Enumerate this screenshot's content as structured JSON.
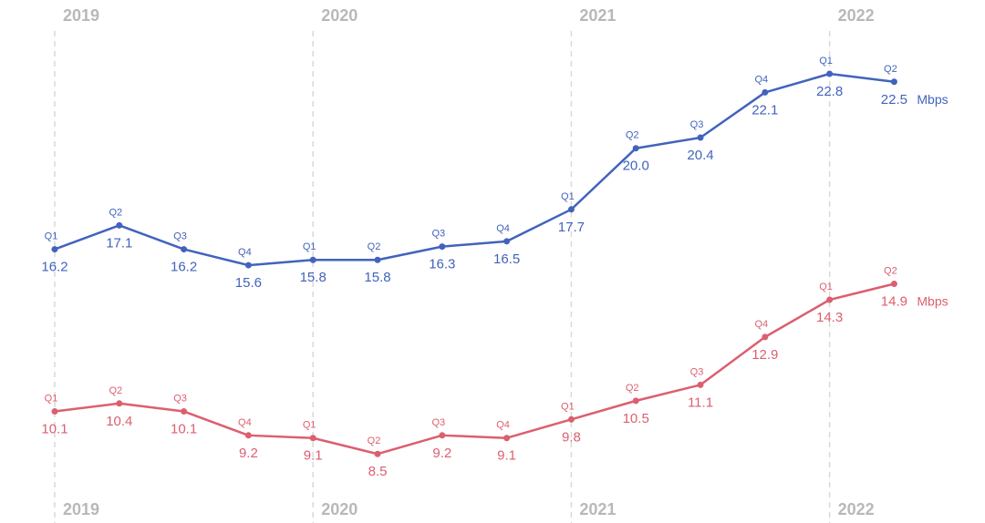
{
  "chart_data": {
    "type": "line",
    "years": [
      "2019",
      "2020",
      "2021",
      "2022"
    ],
    "x": [
      "2019 Q1",
      "2019 Q2",
      "2019 Q3",
      "2019 Q4",
      "2020 Q1",
      "2020 Q2",
      "2020 Q3",
      "2020 Q4",
      "2021 Q1",
      "2021 Q2",
      "2021 Q3",
      "2021 Q4",
      "2022 Q1",
      "2022 Q2"
    ],
    "quarter_labels": [
      "Q1",
      "Q2",
      "Q3",
      "Q4",
      "Q1",
      "Q2",
      "Q3",
      "Q4",
      "Q1",
      "Q2",
      "Q3",
      "Q4",
      "Q1",
      "Q2"
    ],
    "unit": "Mbps",
    "grid": "vertical dashed lines at Q1 of each year",
    "ylim": [
      7,
      24
    ],
    "series": [
      {
        "values": [
          16.2,
          17.1,
          16.2,
          15.6,
          15.8,
          15.8,
          16.3,
          16.5,
          17.7,
          20.0,
          20.4,
          22.1,
          22.8,
          22.5
        ],
        "labels": [
          "16.2",
          "17.1",
          "16.2",
          "15.6",
          "15.8",
          "15.8",
          "16.3",
          "16.5",
          "17.7",
          "20.0",
          "20.4",
          "22.1",
          "22.8",
          "22.5"
        ],
        "color": "#4263bd"
      },
      {
        "values": [
          10.1,
          10.4,
          10.1,
          9.2,
          9.1,
          8.5,
          9.2,
          9.1,
          9.8,
          10.5,
          11.1,
          12.9,
          14.3,
          14.9
        ],
        "labels": [
          "10.1",
          "10.4",
          "10.1",
          "9.2",
          "9.1",
          "8.5",
          "9.2",
          "9.1",
          "9.8",
          "10.5",
          "11.1",
          "12.9",
          "14.3",
          "14.9"
        ],
        "color": "#dc5f6f"
      }
    ]
  },
  "colors": {
    "grid": "#d9d9d9",
    "year_text": "#b8b8b8"
  }
}
